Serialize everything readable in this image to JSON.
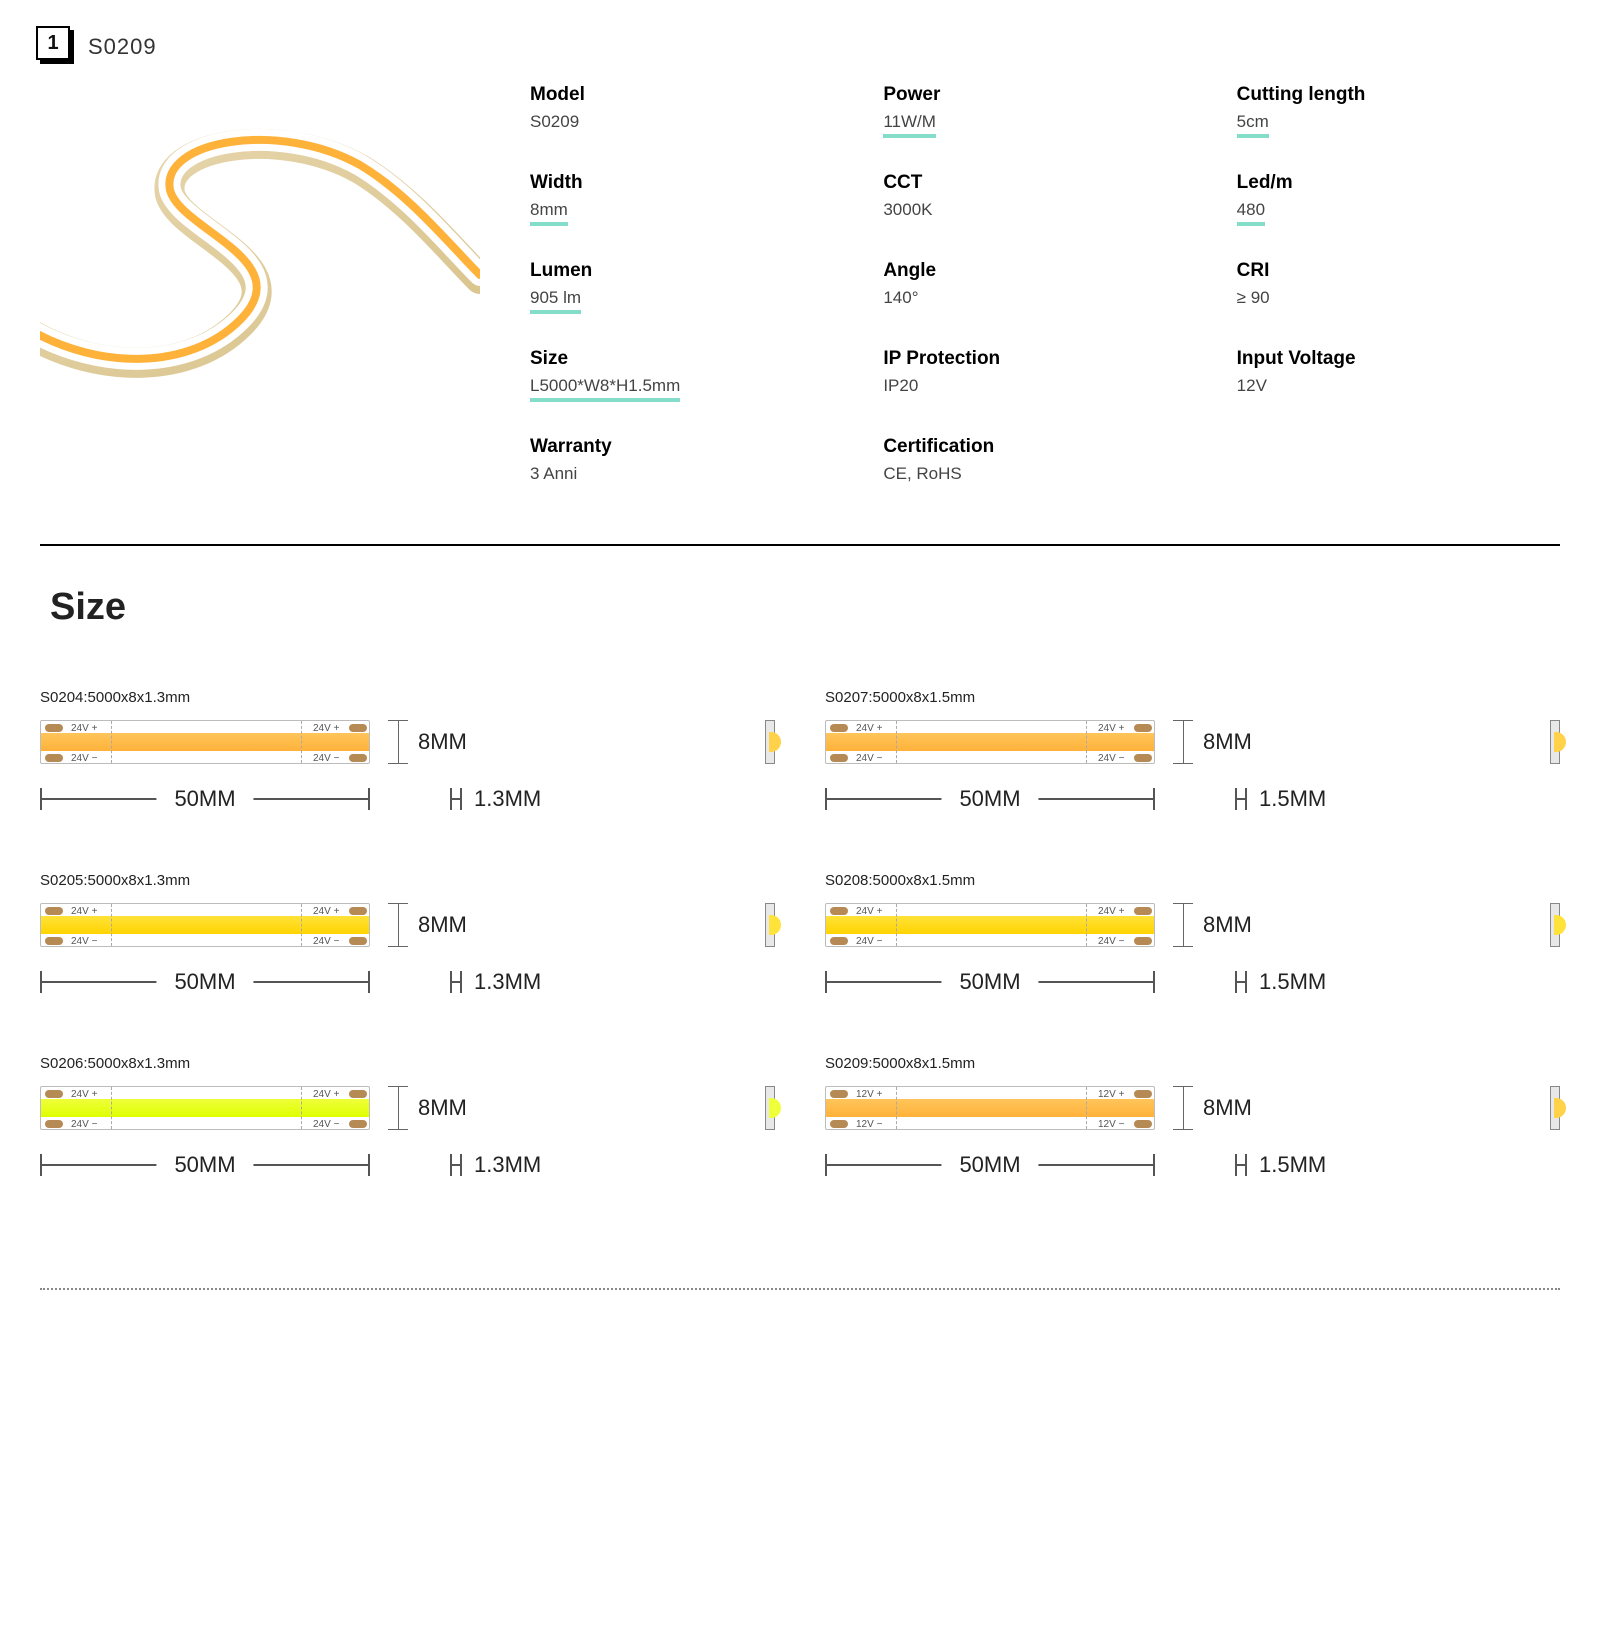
{
  "header": {
    "badge_number": "1",
    "product_code": "S0209"
  },
  "accent_color": "#83ddc9",
  "specs": [
    {
      "label": "Model",
      "value": "S0209",
      "underlined": false
    },
    {
      "label": "Power",
      "value": "11W/M",
      "underlined": true
    },
    {
      "label": "Cutting length",
      "value": "5cm",
      "underlined": true
    },
    {
      "label": "Width",
      "value": "8mm",
      "underlined": true
    },
    {
      "label": "CCT",
      "value": "3000K",
      "underlined": false
    },
    {
      "label": "Led/m",
      "value": "480",
      "underlined": true
    },
    {
      "label": "Lumen",
      "value": "905 lm",
      "underlined": true
    },
    {
      "label": "Angle",
      "value": "140°",
      "underlined": false
    },
    {
      "label": "CRI",
      "value": "≥ 90",
      "underlined": false
    },
    {
      "label": "Size",
      "value": "L5000*W8*H1.5mm",
      "underlined": true
    },
    {
      "label": "IP Protection",
      "value": "IP20",
      "underlined": false
    },
    {
      "label": "Input Voltage",
      "value": "12V",
      "underlined": false
    },
    {
      "label": "Warranty",
      "value": "3 Anni",
      "underlined": false
    },
    {
      "label": "Certification",
      "value": "CE, RoHS",
      "underlined": false
    }
  ],
  "size_section_title": "Size",
  "strip_common": {
    "height_label": "8MM",
    "length_label": "50MM",
    "pad_color": "#b68a55",
    "strip_border": "#bcbcbc"
  },
  "strips": [
    {
      "title": "S0204:5000x8x1.3mm",
      "band_color": "linear-gradient(#ffc55a,#ffb23a)",
      "volt": "24V",
      "thickness": "1.3MM",
      "bulge_color": "#ffd24a"
    },
    {
      "title": "S0207:5000x8x1.5mm",
      "band_color": "linear-gradient(#ffc55a,#ffb23a)",
      "volt": "24V",
      "thickness": "1.5MM",
      "bulge_color": "#ffd24a"
    },
    {
      "title": "S0205:5000x8x1.3mm",
      "band_color": "linear-gradient(#ffe23a,#ffd400)",
      "volt": "24V",
      "thickness": "1.3MM",
      "bulge_color": "#ffe23a"
    },
    {
      "title": "S0208:5000x8x1.5mm",
      "band_color": "linear-gradient(#ffe23a,#ffd400)",
      "volt": "24V",
      "thickness": "1.5MM",
      "bulge_color": "#ffe23a"
    },
    {
      "title": "S0206:5000x8x1.3mm",
      "band_color": "linear-gradient(#efff3a,#dfff00)",
      "volt": "24V",
      "thickness": "1.3MM",
      "bulge_color": "#efff3a"
    },
    {
      "title": "S0209:5000x8x1.5mm",
      "band_color": "linear-gradient(#ffc55a,#ffb23a)",
      "volt": "12V",
      "thickness": "1.5MM",
      "bulge_color": "#ffd24a"
    }
  ]
}
